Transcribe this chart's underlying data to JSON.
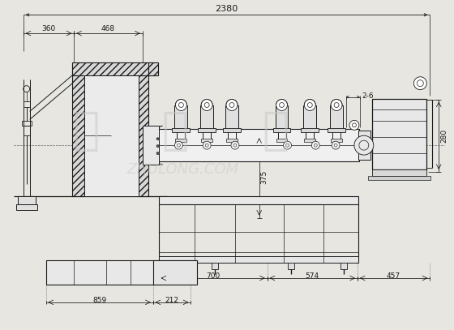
{
  "bg_color": "#e8e6e0",
  "drawing_bg": "#f5f4f0",
  "line_color": "#1a1a1a",
  "dim_color": "#1a1a1a",
  "hatch_color": "#555555",
  "wm_color": "#c8c8c8",
  "annotations": {
    "total": "2380",
    "d360": "360",
    "d468": "468",
    "d26": "2-6",
    "d280": "280",
    "d700": "700",
    "d574": "574",
    "d457": "457",
    "d375": "375",
    "d859": "859",
    "d212": "212"
  }
}
